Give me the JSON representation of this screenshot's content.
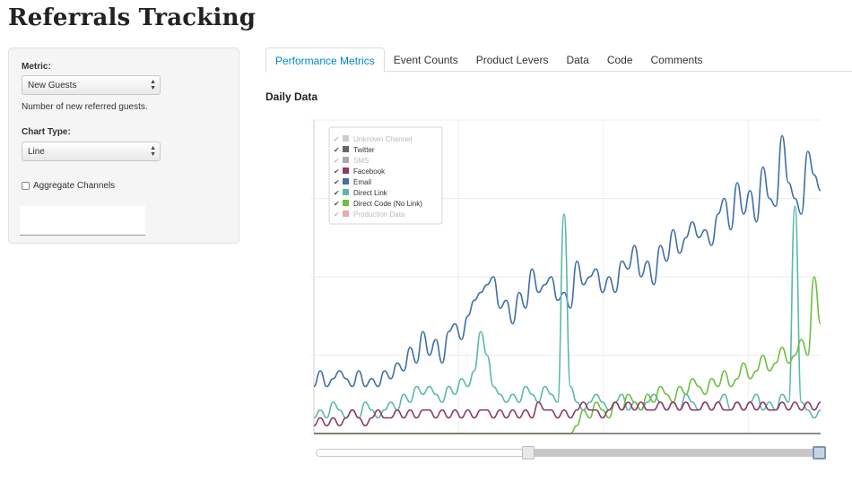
{
  "app": {
    "title": "Referrals Tracking"
  },
  "sidebar": {
    "metric_label": "Metric:",
    "metric_value": "New Guests",
    "metric_help": "Number of new referred guests.",
    "chart_type_label": "Chart Type:",
    "chart_type_value": "Line",
    "aggregate_label": "Aggregate Channels",
    "aggregate_checked": false
  },
  "tabs": [
    {
      "label": "Performance Metrics",
      "active": true
    },
    {
      "label": "Event Counts",
      "active": false
    },
    {
      "label": "Product Levers",
      "active": false
    },
    {
      "label": "Data",
      "active": false
    },
    {
      "label": "Code",
      "active": false
    },
    {
      "label": "Comments",
      "active": false
    }
  ],
  "section_title": "Daily Data",
  "legend": [
    {
      "label": "Unknown Channel",
      "color": "#cccccc",
      "enabled": false
    },
    {
      "label": "Twitter",
      "color": "#666666",
      "enabled": true
    },
    {
      "label": "SMS",
      "color": "#aaaaaa",
      "enabled": false
    },
    {
      "label": "Facebook",
      "color": "#8e3a6d",
      "enabled": true
    },
    {
      "label": "Email",
      "color": "#3f6fa6",
      "enabled": true
    },
    {
      "label": "Direct Link",
      "color": "#5bb8ad",
      "enabled": true
    },
    {
      "label": "Direct Code (No Link)",
      "color": "#6cbf3f",
      "enabled": true
    },
    {
      "label": "Production Data",
      "color": "#e8aaaa",
      "enabled": false
    }
  ],
  "chart_data": {
    "type": "line",
    "x": [
      1,
      2,
      3,
      4,
      5,
      6,
      7,
      8,
      9,
      10,
      11,
      12,
      13,
      14,
      15,
      16,
      17,
      18,
      19,
      20,
      21,
      22,
      23,
      24,
      25,
      26,
      27,
      28,
      29,
      30,
      31,
      32,
      33,
      34,
      35,
      36,
      37,
      38,
      39,
      40,
      41,
      42,
      43,
      44,
      45,
      46,
      47,
      48,
      49,
      50,
      51,
      52,
      53,
      54,
      55,
      56,
      57,
      58,
      59,
      60,
      61,
      62,
      63,
      64,
      65,
      66,
      67,
      68,
      69,
      70,
      71,
      72,
      73,
      74,
      75,
      76,
      77,
      78,
      79,
      80
    ],
    "ylim": [
      0,
      40
    ],
    "series": [
      {
        "name": "Email",
        "color": "#3f6fa6",
        "values": [
          6,
          8,
          6,
          7,
          8,
          7,
          6,
          8,
          6,
          7,
          6,
          8,
          7,
          9,
          8,
          11,
          9,
          13,
          10,
          12,
          9,
          13,
          14,
          12,
          15,
          17,
          18,
          19,
          20,
          16,
          17,
          14,
          18,
          16,
          21,
          18,
          19,
          20,
          17,
          18,
          16,
          22,
          19,
          20,
          21,
          18,
          20,
          18,
          22,
          21,
          24,
          20,
          22,
          19,
          24,
          22,
          26,
          23,
          25,
          27,
          25,
          26,
          24,
          28,
          30,
          26,
          32,
          28,
          31,
          27,
          34,
          30,
          29,
          38,
          32,
          30,
          28,
          36,
          33,
          31
        ]
      },
      {
        "name": "Direct Link",
        "color": "#5bb8ad",
        "values": [
          2,
          3,
          2,
          4,
          3,
          2,
          3,
          2,
          4,
          3,
          2,
          3,
          4,
          3,
          5,
          4,
          6,
          5,
          6,
          5,
          4,
          6,
          5,
          7,
          6,
          8,
          13,
          10,
          6,
          5,
          4,
          5,
          4,
          6,
          5,
          4,
          6,
          5,
          4,
          28,
          6,
          4,
          3,
          4,
          5,
          4,
          3,
          4,
          5,
          3,
          4,
          3,
          4,
          5,
          4,
          3,
          4,
          3,
          5,
          4,
          3,
          4,
          3,
          4,
          5,
          3,
          4,
          3,
          4,
          5,
          3,
          4,
          3,
          5,
          4,
          29,
          4,
          3,
          2,
          3
        ]
      },
      {
        "name": "Direct Code (No Link)",
        "color": "#6cbf3f",
        "values": [
          0,
          0,
          0,
          0,
          0,
          0,
          0,
          0,
          0,
          0,
          0,
          0,
          0,
          0,
          0,
          0,
          0,
          0,
          0,
          0,
          0,
          0,
          0,
          0,
          0,
          0,
          0,
          0,
          0,
          0,
          0,
          0,
          0,
          0,
          0,
          0,
          0,
          0,
          0,
          0,
          0,
          1,
          3,
          2,
          4,
          3,
          2,
          4,
          3,
          5,
          4,
          3,
          5,
          4,
          6,
          5,
          4,
          6,
          5,
          7,
          6,
          5,
          7,
          6,
          8,
          6,
          7,
          9,
          7,
          8,
          10,
          8,
          9,
          11,
          9,
          10,
          12,
          10,
          20,
          14
        ]
      },
      {
        "name": "Facebook",
        "color": "#8e3a6d",
        "values": [
          1,
          2,
          1,
          2,
          1,
          2,
          3,
          2,
          1,
          2,
          3,
          2,
          2,
          3,
          2,
          3,
          2,
          3,
          3,
          2,
          3,
          2,
          3,
          2,
          3,
          2,
          3,
          3,
          2,
          3,
          2,
          3,
          2,
          3,
          2,
          4,
          3,
          3,
          2,
          3,
          2,
          3,
          4,
          3,
          3,
          2,
          3,
          4,
          3,
          4,
          3,
          4,
          3,
          3,
          4,
          3,
          4,
          3,
          4,
          3,
          3,
          4,
          3,
          4,
          3,
          3,
          4,
          3,
          4,
          3,
          4,
          3,
          3,
          4,
          3,
          4,
          3,
          4,
          3,
          4
        ]
      },
      {
        "name": "Twitter",
        "color": "#666666",
        "values": [
          0,
          0,
          0,
          0,
          0,
          0,
          0,
          0,
          0,
          0,
          0,
          0,
          0,
          0,
          0,
          0,
          0,
          0,
          0,
          0,
          0,
          0,
          0,
          0,
          0,
          0,
          0,
          0,
          0,
          0,
          0,
          0,
          0,
          0,
          0,
          0,
          0,
          0,
          0,
          0,
          0,
          0,
          0,
          0,
          0,
          0,
          0,
          0,
          0,
          0,
          0,
          0,
          0,
          0,
          0,
          0,
          0,
          0,
          0,
          0,
          0,
          0,
          0,
          0,
          0,
          0,
          0,
          0,
          0,
          0,
          0,
          0,
          0,
          0,
          0,
          0,
          0,
          0,
          0,
          0
        ]
      }
    ]
  },
  "range_slider": {
    "start_fraction": 0.42,
    "end_fraction": 1.0
  }
}
